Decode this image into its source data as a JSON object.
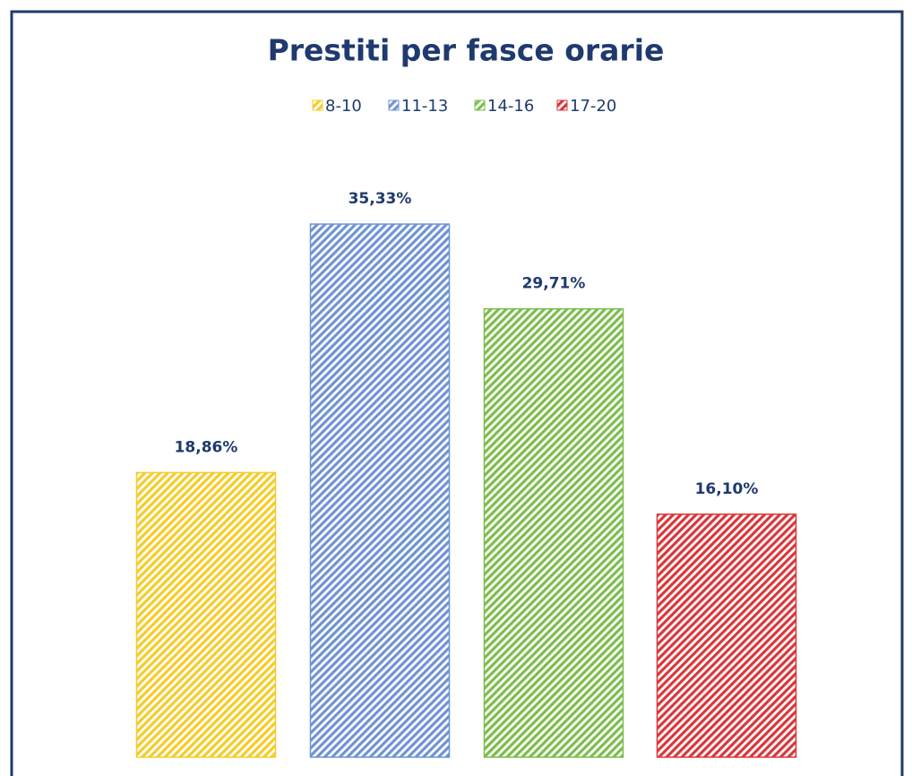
{
  "chart_data": {
    "type": "bar",
    "title": "Prestiti per fasce orarie",
    "series": [
      {
        "name": "8-10",
        "color": "#f5cc2a",
        "values": [
          18.86
        ],
        "value_labels": [
          "18,86%"
        ]
      },
      {
        "name": "11-13",
        "color": "#6f93d6",
        "values": [
          35.33
        ],
        "value_labels": [
          "35,33%"
        ]
      },
      {
        "name": "14-16",
        "color": "#7dbd4c",
        "values": [
          29.71
        ],
        "value_labels": [
          "29,71%"
        ]
      },
      {
        "name": "17-20",
        "color": "#d9383c",
        "values": [
          16.1
        ],
        "value_labels": [
          "16,10%"
        ]
      }
    ]
  }
}
